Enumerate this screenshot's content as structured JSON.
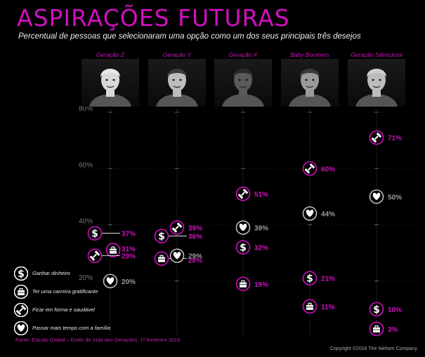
{
  "title": "ASPIRAÇÕES FUTURAS",
  "subtitle": "Percentual de pessoas que selecionaram uma opção como um dos seus principais três desejos",
  "source": "Fonte: Estudo Global – Estilo de Vida das Gerações, 1º trimestre 2015",
  "copyright": "Copyright ©2016 The Nielsen Company.",
  "legend": [
    {
      "key": "dinheiro",
      "icon": "dollar-icon",
      "label": "Ganhar dinheiro"
    },
    {
      "key": "carreira",
      "icon": "briefcase-icon",
      "label": "Ter uma carreira gratificante"
    },
    {
      "key": "forma",
      "icon": "dumbbell-icon",
      "label": "Ficar em forma e saudável"
    },
    {
      "key": "familia",
      "icon": "heart-icon",
      "label": "Passar mais tempo com a família"
    }
  ],
  "colors": {
    "accent": "#d10fbf",
    "grey": "#9a9a9a",
    "white": "#ffffff"
  },
  "chart_data": {
    "type": "scatter",
    "title": "ASPIRAÇÕES FUTURAS",
    "subtitle": "Percentual de pessoas que selecionaram uma opção como um dos seus principais três desejos",
    "y_ticks": [
      "80%",
      "60%",
      "40%",
      "20%"
    ],
    "y_tick_values": [
      80,
      60,
      40,
      20
    ],
    "ylim": [
      0,
      80
    ],
    "categories": [
      "Geração Z",
      "Geração Y",
      "Geração X",
      "Baby Boomers",
      "Geração Silenciosa"
    ],
    "series": [
      {
        "name": "Ganhar dinheiro",
        "key": "dinheiro",
        "values": [
          37,
          36,
          32,
          21,
          10
        ],
        "labels": [
          "37%",
          "36%",
          "32%",
          "21%",
          "10%"
        ]
      },
      {
        "name": "Ter uma carreira gratificante",
        "key": "carreira",
        "values": [
          31,
          28,
          19,
          11,
          3
        ],
        "labels": [
          "31%",
          "28%",
          "19%",
          "11%",
          "3%"
        ]
      },
      {
        "name": "Ficar em forma e saudável",
        "key": "forma",
        "values": [
          29,
          39,
          51,
          60,
          71
        ],
        "labels": [
          "29%",
          "39%",
          "51%",
          "60%",
          "71%"
        ]
      },
      {
        "name": "Passar mais tempo com a família",
        "key": "familia",
        "values": [
          20,
          29,
          39,
          44,
          50
        ],
        "labels": [
          "20%",
          "29%",
          "39%",
          "44%",
          "50%"
        ]
      }
    ]
  }
}
